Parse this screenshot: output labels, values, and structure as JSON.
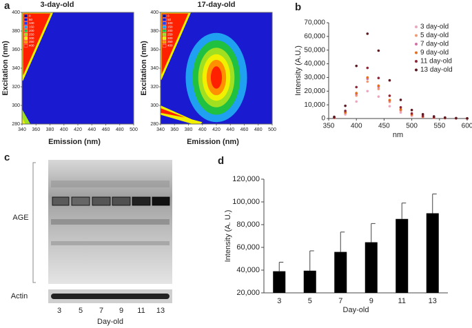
{
  "panel_labels": [
    "a",
    "b",
    "c",
    "d"
  ],
  "chart_data": [
    {
      "type": "contour",
      "title": "3-day-old",
      "x_label": "Emission (nm)",
      "y_label": "Excitation (nm)",
      "xlim": [
        340,
        500
      ],
      "xticks": [
        340,
        360,
        380,
        400,
        420,
        440,
        460,
        480,
        500
      ],
      "ylim": [
        280,
        400
      ],
      "yticks": [
        280,
        300,
        320,
        340,
        360,
        380,
        400
      ],
      "colorbar": {
        "levels": [
          0,
          50,
          100,
          150,
          200,
          250,
          300,
          350,
          400
        ],
        "colors": [
          "#10108a",
          "#1a1ad0",
          "#2040f0",
          "#20a0f0",
          "#20c040",
          "#a0e020",
          "#f0f000",
          "#ff9000",
          "#ff2000"
        ]
      }
    },
    {
      "type": "contour",
      "title": "17-day-old",
      "x_label": "Emission (nm)",
      "y_label": "Excitation (nm)",
      "xlim": [
        340,
        500
      ],
      "xticks": [
        340,
        360,
        380,
        400,
        420,
        440,
        460,
        480,
        500
      ],
      "ylim": [
        280,
        400
      ],
      "yticks": [
        280,
        300,
        320,
        340,
        360,
        380,
        400
      ],
      "colorbar": {
        "levels": [
          0,
          50,
          100,
          150,
          200,
          250,
          300,
          350,
          400
        ],
        "colors": [
          "#10108a",
          "#1a1ad0",
          "#2040f0",
          "#20a0f0",
          "#20c040",
          "#a0e020",
          "#f0f000",
          "#ff9000",
          "#ff2000"
        ]
      }
    },
    {
      "type": "line",
      "x_label": "nm",
      "y_label": "Intensity (A.U.)",
      "x": [
        360,
        380,
        400,
        420,
        440,
        460,
        480,
        500,
        520,
        540,
        560,
        580,
        600
      ],
      "series": [
        {
          "name": "3 day-old",
          "color": "#eaa8c0",
          "values": [
            400,
            3000,
            12400,
            20000,
            16000,
            9000,
            4400,
            2000,
            1000,
            500,
            240,
            100,
            40
          ]
        },
        {
          "name": "5 day-old",
          "color": "#ee9a78",
          "values": [
            540,
            4050,
            16740,
            27000,
            21600,
            12150,
            5940,
            2700,
            1350,
            675,
            324,
            135,
            54
          ]
        },
        {
          "name": "7 day-old",
          "color": "#d070a8",
          "values": [
            580,
            4350,
            17980,
            29000,
            23200,
            13050,
            6380,
            2900,
            1450,
            725,
            348,
            145,
            58
          ]
        },
        {
          "name": "9 day-old",
          "color": "#e07020",
          "values": [
            600,
            4500,
            18600,
            30000,
            24000,
            13500,
            6600,
            3000,
            1500,
            750,
            360,
            150,
            60
          ]
        },
        {
          "name": "11 day-old",
          "color": "#8a2838",
          "values": [
            740,
            5550,
            22940,
            37000,
            29600,
            16650,
            8140,
            3700,
            1850,
            925,
            444,
            185,
            74
          ]
        },
        {
          "name": "13 day-old",
          "color": "#5a1a22",
          "values": [
            1240,
            9300,
            38440,
            62000,
            49600,
            27900,
            13640,
            6200,
            3100,
            1550,
            744,
            310,
            124
          ]
        }
      ],
      "xlim": [
        350,
        600
      ],
      "xticks": [
        350,
        400,
        450,
        500,
        550,
        600
      ],
      "ylim": [
        0,
        70000
      ],
      "yticks": [
        0,
        {
          "value": 10000,
          "label": "10,000"
        },
        {
          "value": 20000,
          "label": "20,000"
        },
        {
          "value": 30000,
          "label": "30,000"
        },
        {
          "value": 40000,
          "label": "40,000"
        },
        {
          "value": 50000,
          "label": "50,000"
        },
        {
          "value": 60000,
          "label": "60,000"
        },
        {
          "value": 70000,
          "label": "70,000"
        }
      ],
      "legend": "upper right"
    },
    {
      "type": "bar",
      "x_label": "Day-old",
      "y_label": "Intensity (A. U.)",
      "categories": [
        "3",
        "5",
        "7",
        "9",
        "11",
        "13"
      ],
      "values": [
        39000,
        39500,
        56000,
        64500,
        85000,
        90000
      ],
      "errors": [
        8000,
        17500,
        17500,
        16500,
        14000,
        17000
      ],
      "color": "#000000",
      "ylim": [
        20000,
        120000
      ],
      "yticks": [
        {
          "value": 20000,
          "label": "20,000"
        },
        {
          "value": 40000,
          "label": "40,000"
        },
        {
          "value": 60000,
          "label": "60,000"
        },
        {
          "value": 80000,
          "label": "80,000"
        },
        {
          "value": 100000,
          "label": "100,000"
        },
        {
          "value": 120000,
          "label": "120,000"
        }
      ]
    }
  ],
  "blot": {
    "row_labels": [
      "AGE",
      "Actin"
    ],
    "lane_labels": [
      "3",
      "5",
      "7",
      "9",
      "11",
      "13"
    ],
    "x_label": "Day-old"
  }
}
